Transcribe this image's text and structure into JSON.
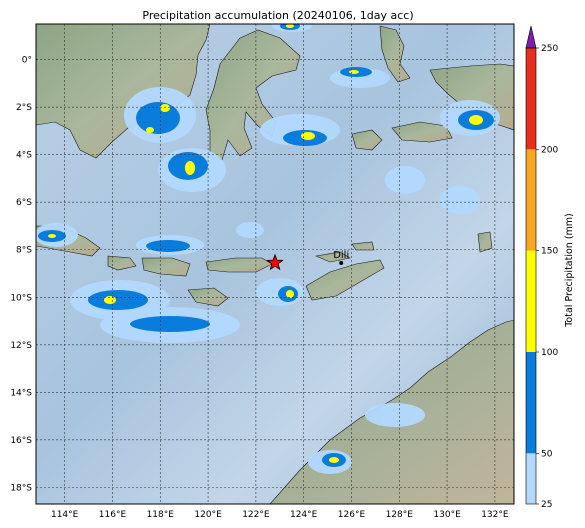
{
  "title": "Precipitation accumulation (20240106, 1day acc)",
  "map": {
    "lon_range": [
      112.8,
      132.8
    ],
    "lat_range": [
      -18.7,
      1.5
    ],
    "lon_ticks": [
      114,
      116,
      118,
      120,
      122,
      124,
      126,
      128,
      130,
      132
    ],
    "lat_ticks": [
      0,
      -2,
      -4,
      -6,
      -8,
      -10,
      -12,
      -14,
      -16,
      -18
    ],
    "lon_tick_labels": [
      "114°E",
      "116°E",
      "118°E",
      "120°E",
      "122°E",
      "124°E",
      "126°E",
      "128°E",
      "130°E",
      "132°E"
    ],
    "lat_tick_labels": [
      "0°",
      "2°S",
      "4°S",
      "6°S",
      "8°S",
      "10°S",
      "12°S",
      "14°S",
      "16°S",
      "18°S"
    ],
    "gridlines": true,
    "marker": {
      "type": "red-star",
      "lon": 122.8,
      "lat": -8.55
    },
    "city": {
      "name": "Dili",
      "lon": 125.57,
      "lat": -8.56
    },
    "colors": {
      "ocean": "#9fbfdb",
      "land": "#93a98a",
      "grid": "#333333"
    }
  },
  "colorbar": {
    "label": "Total Precipitation (mm)",
    "ticks": [
      25,
      50,
      100,
      150,
      200,
      250
    ],
    "tick_labels": [
      "25",
      "50",
      "100",
      "150",
      "200",
      "250"
    ],
    "colors": [
      "#b3d9ff",
      "#0a7ddc",
      "#ffff00",
      "#f5a623",
      "#e53020",
      "#7a1fb0"
    ],
    "extend": "max"
  }
}
